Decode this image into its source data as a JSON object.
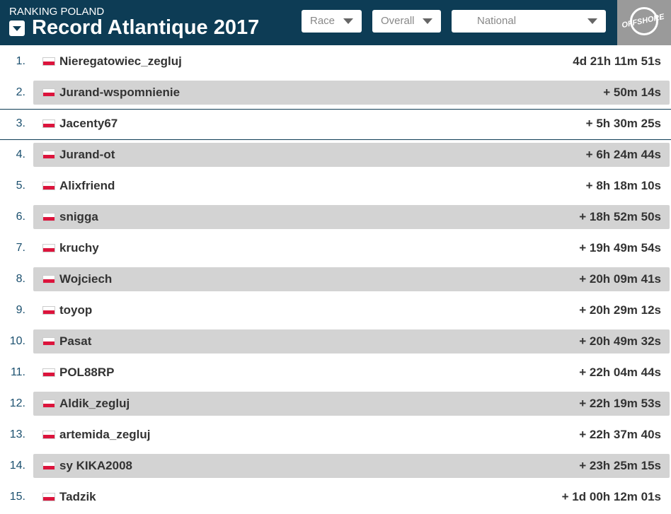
{
  "header": {
    "subtitle": "RANKING POLAND",
    "title": "Record Atlantique 2017",
    "filters": [
      "Race",
      "Overall",
      "National"
    ],
    "logo": "OFFSHORE"
  },
  "table": {
    "rows": [
      {
        "rank": "1.",
        "name": "Nieregatowiec_zegluj",
        "time": "4d 21h 11m 51s"
      },
      {
        "rank": "2.",
        "name": "Jurand-wspomnienie",
        "time": "+ 50m 14s"
      },
      {
        "rank": "3.",
        "name": "Jacenty67",
        "time": "+ 5h 30m 25s"
      },
      {
        "rank": "4.",
        "name": "Jurand-ot",
        "time": "+ 6h 24m 44s"
      },
      {
        "rank": "5.",
        "name": "Alixfriend",
        "time": "+ 8h 18m 10s"
      },
      {
        "rank": "6.",
        "name": "snigga",
        "time": "+ 18h 52m 50s"
      },
      {
        "rank": "7.",
        "name": "kruchy",
        "time": "+ 19h 49m 54s"
      },
      {
        "rank": "8.",
        "name": "Wojciech",
        "time": "+ 20h 09m 41s"
      },
      {
        "rank": "9.",
        "name": "toyop",
        "time": "+ 20h 29m 12s"
      },
      {
        "rank": "10.",
        "name": "Pasat",
        "time": "+ 20h 49m 32s"
      },
      {
        "rank": "11.",
        "name": "POL88RP",
        "time": "+ 22h 04m 44s"
      },
      {
        "rank": "12.",
        "name": "Aldik_zegluj",
        "time": "+ 22h 19m 53s"
      },
      {
        "rank": "13.",
        "name": "artemida_zegluj",
        "time": "+ 22h 37m 40s"
      },
      {
        "rank": "14.",
        "name": "sy KIKA2008",
        "time": "+ 23h 25m 15s"
      },
      {
        "rank": "15.",
        "name": "Tadzik",
        "time": "+ 1d 00h 12m 01s"
      }
    ]
  }
}
